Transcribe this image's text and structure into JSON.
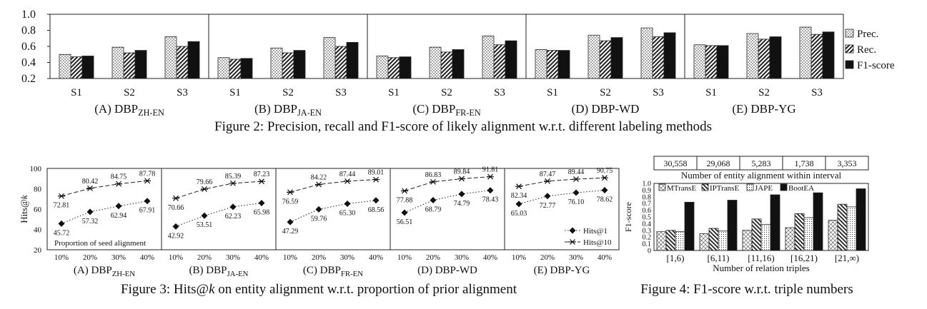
{
  "chart_data": [
    {
      "type": "bar",
      "figure": "fig2",
      "ylim": [
        0.2,
        1.0
      ],
      "yticks": [
        "0.2",
        "0.4",
        "0.6",
        "0.8",
        "1.0"
      ],
      "categories": [
        "S1",
        "S2",
        "S3"
      ],
      "legend": [
        "Prec.",
        "Rec.",
        "F1-score"
      ],
      "legend_position": "right",
      "caption": "Figure 2: Precision, recall and F1-score of likely alignment w.r.t. different labeling methods",
      "panels": [
        {
          "name": "(A) DBP",
          "sub": "ZH-EN",
          "values": [
            [
              0.5,
              0.47,
              0.48
            ],
            [
              0.59,
              0.52,
              0.55
            ],
            [
              0.72,
              0.6,
              0.66
            ]
          ]
        },
        {
          "name": "(B) DBP",
          "sub": "JA-EN",
          "values": [
            [
              0.46,
              0.44,
              0.45
            ],
            [
              0.58,
              0.52,
              0.55
            ],
            [
              0.71,
              0.6,
              0.65
            ]
          ]
        },
        {
          "name": "(C) DBP",
          "sub": "FR-EN",
          "values": [
            [
              0.48,
              0.46,
              0.47
            ],
            [
              0.59,
              0.53,
              0.56
            ],
            [
              0.73,
              0.62,
              0.67
            ]
          ]
        },
        {
          "name": "(D) DBP-WD",
          "sub": "",
          "values": [
            [
              0.56,
              0.55,
              0.55
            ],
            [
              0.74,
              0.67,
              0.71
            ],
            [
              0.83,
              0.72,
              0.77
            ]
          ]
        },
        {
          "name": "(E) DBP-YG",
          "sub": "",
          "values": [
            [
              0.62,
              0.61,
              0.61
            ],
            [
              0.76,
              0.69,
              0.72
            ],
            [
              0.84,
              0.75,
              0.78
            ]
          ]
        }
      ]
    },
    {
      "type": "line",
      "figure": "fig3",
      "ylim": [
        20,
        100
      ],
      "yticks": [
        "20",
        "40",
        "60",
        "80",
        "100"
      ],
      "ylabel": "Hits@",
      "ylabel_k": "k",
      "x": [
        "10%",
        "20%",
        "30%",
        "40%"
      ],
      "annotation": "Proportion of seed alignment",
      "legend": [
        "Hits@1",
        "Hits@10"
      ],
      "legend_position": "bottom-right",
      "caption_pre": "Figure 3: Hits@",
      "caption_k": "k",
      "caption_post": " on entity alignment w.r.t. proportion of prior alignment",
      "panels": [
        {
          "name": "(A) DBP",
          "sub": "ZH-EN",
          "hits1": [
            45.72,
            57.32,
            62.94,
            67.91
          ],
          "hits10": [
            72.81,
            80.42,
            84.75,
            87.78
          ],
          "h1_labels": [
            "45.72",
            "57.32",
            "62.94",
            "67.91"
          ],
          "h10_labels": [
            "72.81",
            "80.42",
            "84.75",
            "87.78"
          ]
        },
        {
          "name": "(B) DBP",
          "sub": "JA-EN",
          "hits1": [
            42.92,
            53.51,
            62.23,
            65.98
          ],
          "hits10": [
            70.66,
            79.66,
            85.39,
            87.23
          ],
          "h1_labels": [
            "42.92",
            "53.51",
            "62.23",
            "65.98"
          ],
          "h10_labels": [
            "70.66",
            "79.66",
            "85.39",
            "87.23"
          ]
        },
        {
          "name": "(C) DBP",
          "sub": "FR-EN",
          "hits1": [
            47.29,
            59.76,
            65.3,
            68.56
          ],
          "hits10": [
            76.59,
            84.22,
            87.44,
            89.01
          ],
          "h1_labels": [
            "47.29",
            "59.76",
            "65.30",
            "68.56"
          ],
          "h10_labels": [
            "76.59",
            "84.22",
            "87.44",
            "89.01"
          ]
        },
        {
          "name": "(D) DBP-WD",
          "sub": "",
          "hits1": [
            56.51,
            68.79,
            74.79,
            78.43
          ],
          "hits10": [
            77.88,
            86.83,
            89.84,
            91.81
          ],
          "h1_labels": [
            "56.51",
            "68.79",
            "74.79",
            "78.43"
          ],
          "h10_labels": [
            "77.88",
            "86.83",
            "89.84",
            "91.81"
          ]
        },
        {
          "name": "(E) DBP-YG",
          "sub": "",
          "hits1": [
            65.03,
            72.77,
            76.1,
            78.62
          ],
          "hits10": [
            82.34,
            87.47,
            89.44,
            90.75
          ],
          "h1_labels": [
            "65.03",
            "72.77",
            "76.10",
            "78.62"
          ],
          "h10_labels": [
            "82.34",
            "87.47",
            "89.44",
            "90.75"
          ]
        }
      ]
    },
    {
      "type": "bar",
      "figure": "fig4",
      "ylim": [
        0,
        1.0
      ],
      "yticks": [
        "0",
        "0.1",
        "0.2",
        "0.3",
        "0.4",
        "0.5",
        "0.6",
        "0.7",
        "0.8",
        "0.9",
        "1.0"
      ],
      "ylabel": "F1-score",
      "xlabel": "Number of relation triples",
      "categories": [
        "[1,6)",
        "[6,11)",
        "[11,16)",
        "[16,21)",
        "[21,∞)"
      ],
      "counts": [
        "30,558",
        "29,068",
        "5,283",
        "1,738",
        "3,353"
      ],
      "counts_label": "Number of entity alignment within interval",
      "legend_position": "top",
      "series": [
        {
          "name": "MTransE",
          "values": [
            0.28,
            0.25,
            0.3,
            0.34,
            0.45
          ]
        },
        {
          "name": "IPTransE",
          "values": [
            0.3,
            0.33,
            0.47,
            0.55,
            0.69
          ]
        },
        {
          "name": "JAPE",
          "values": [
            0.28,
            0.29,
            0.39,
            0.49,
            0.65
          ]
        },
        {
          "name": "BootEA",
          "values": [
            0.72,
            0.75,
            0.83,
            0.86,
            0.92
          ]
        }
      ],
      "caption": "Figure 4: F1-score w.r.t. triple numbers"
    }
  ]
}
